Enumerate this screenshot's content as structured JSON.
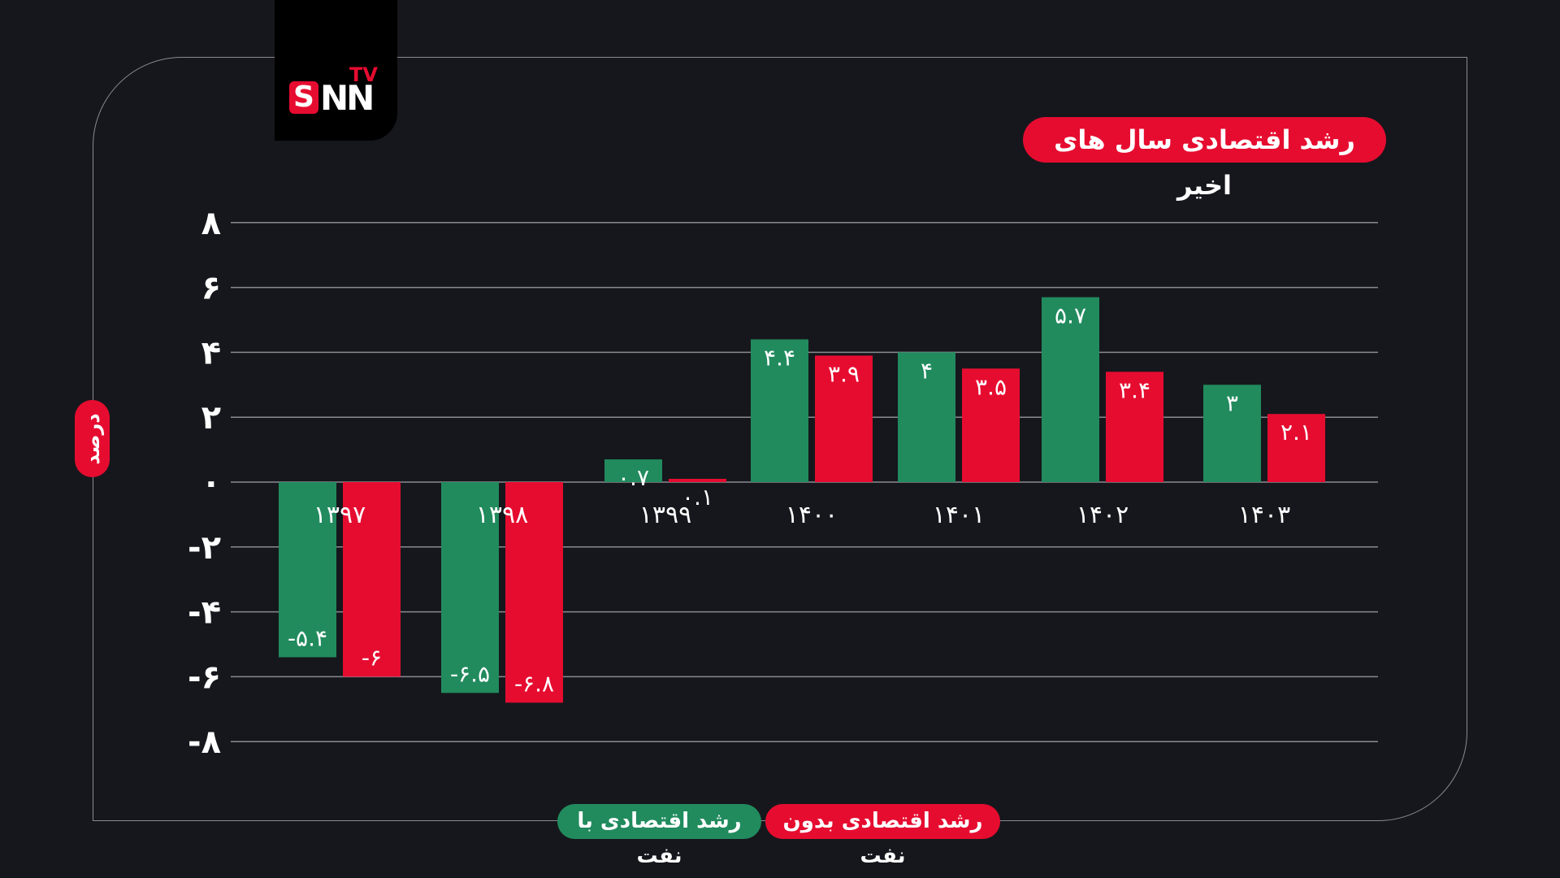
{
  "logo": {
    "text": "SNN TV"
  },
  "title": "رشد اقتصادی سال های اخیر",
  "colors": {
    "background": "#16171c",
    "green": "#218b5e",
    "red": "#e60c30",
    "grid": "#8a8b90"
  },
  "legend": {
    "with_oil": "رشد اقتصادی با نفت",
    "without_oil": "رشد اقتصادی بدون نفت"
  },
  "chart_data": {
    "type": "bar",
    "ylabel": "درصد",
    "ylim": [
      -8,
      8
    ],
    "grid": true,
    "legend_position": "bottom",
    "yticks": [
      8,
      6,
      4,
      2,
      0,
      -2,
      -4,
      -6,
      -8
    ],
    "ytick_labels": [
      "۸",
      "۶",
      "۴",
      "۲",
      "۰",
      "-۲",
      "-۴",
      "-۶",
      "-۸"
    ],
    "categories": [
      "۱۳۹۷",
      "۱۳۹۸",
      "۱۳۹۹",
      "۱۴۰۰",
      "۱۴۰۱",
      "۱۴۰۲",
      "۱۴۰۳"
    ],
    "series": [
      {
        "name": "رشد اقتصادی با نفت",
        "color": "#218b5e",
        "values": [
          -5.4,
          -6.5,
          0.7,
          4.4,
          4,
          5.7,
          3
        ],
        "labels": [
          "-۵.۴",
          "-۶.۵",
          "۰.۷",
          "۴.۴",
          "۴",
          "۵.۷",
          "۳"
        ]
      },
      {
        "name": "رشد اقتصادی بدون نفت",
        "color": "#e60c30",
        "values": [
          -6,
          -6.8,
          0.1,
          3.9,
          3.5,
          3.4,
          2.1
        ],
        "labels": [
          "-۶",
          "-۶.۸",
          "۰.۱",
          "۳.۹",
          "۳.۵",
          "۳.۴",
          "۲.۱"
        ]
      }
    ]
  }
}
